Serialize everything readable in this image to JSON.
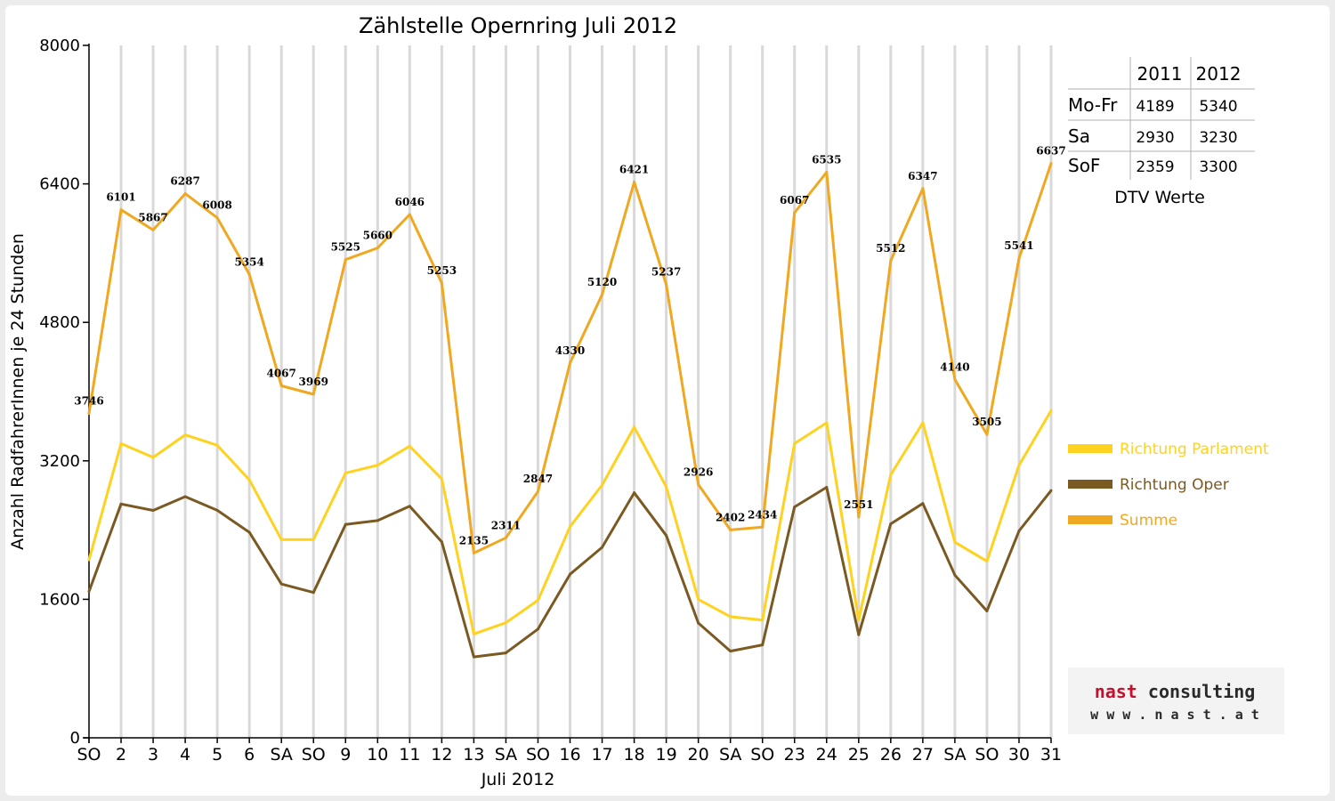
{
  "chart_data": {
    "type": "line",
    "title": "Zählstelle Opernring Juli 2012",
    "xlabel": "Juli 2012",
    "ylabel": "Anzahl RadfahrerInnen je 24 Stunden",
    "ylim": [
      0,
      8000
    ],
    "yticks": [
      "0",
      "1600",
      "3200",
      "4800",
      "6400",
      "8000"
    ],
    "grid": "vertical",
    "legend_position": "right",
    "categories": [
      "SO",
      "2",
      "3",
      "4",
      "5",
      "6",
      "SA",
      "SO",
      "9",
      "10",
      "11",
      "12",
      "13",
      "SA",
      "SO",
      "16",
      "17",
      "18",
      "19",
      "20",
      "SA",
      "SO",
      "23",
      "24",
      "25",
      "26",
      "27",
      "SA",
      "SO",
      "30",
      "31"
    ],
    "highlight_categories": [
      "SO"
    ],
    "highlight_color": "#ee0000",
    "series": [
      {
        "name": "Richtung Parlament",
        "color": "#ffd21f",
        "values": [
          2056,
          3400,
          3240,
          3500,
          3380,
          2980,
          2290,
          2290,
          3060,
          3150,
          3370,
          2990,
          1200,
          1330,
          1590,
          2440,
          2920,
          3590,
          2900,
          1600,
          1400,
          1360,
          3400,
          3640,
          1360,
          3040,
          3640,
          2260,
          2040,
          3150,
          3780
        ]
      },
      {
        "name": "Richtung Oper",
        "color": "#7a5a22",
        "values": [
          1690,
          2701,
          2627,
          2787,
          2628,
          2374,
          1777,
          1679,
          2465,
          2510,
          2676,
          2263,
          935,
          981,
          1257,
          1890,
          2200,
          2831,
          2337,
          1326,
          1002,
          1074,
          2667,
          2895,
          1191,
          2472,
          2707,
          1880,
          1465,
          2391,
          2857
        ]
      },
      {
        "name": "Summe",
        "color": "#f0a820",
        "labeled": true,
        "values": [
          3746,
          6101,
          5867,
          6287,
          6008,
          5354,
          4067,
          3969,
          5525,
          5660,
          6046,
          5253,
          2135,
          2311,
          2847,
          4330,
          5120,
          6421,
          5237,
          2926,
          2402,
          2434,
          6067,
          6535,
          2551,
          5512,
          6347,
          4140,
          3505,
          5541,
          6637
        ]
      }
    ]
  },
  "dtv_table": {
    "headers": [
      "",
      "2011",
      "2012"
    ],
    "rows": [
      {
        "label": "Mo-Fr",
        "v2011": "4189",
        "v2012": "5340"
      },
      {
        "label": "Sa",
        "v2011": "2930",
        "v2012": "3230"
      },
      {
        "label": "SoF",
        "v2011": "2359",
        "v2012": "3300"
      }
    ],
    "caption": "DTV Werte"
  },
  "logo": {
    "name": "nast consulting",
    "url": "w w w . n a s t . a t"
  }
}
